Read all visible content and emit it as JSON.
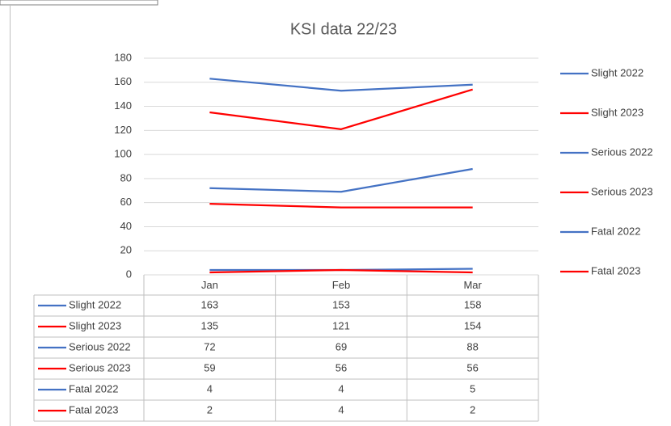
{
  "chart_data": {
    "type": "line",
    "title": "KSI data 22/23",
    "categories": [
      "Jan",
      "Feb",
      "Mar"
    ],
    "series": [
      {
        "name": "Slight 2022",
        "color": "#4472c4",
        "values": [
          163,
          153,
          158
        ]
      },
      {
        "name": "Slight 2023",
        "color": "#ff0000",
        "values": [
          135,
          121,
          154
        ]
      },
      {
        "name": "Serious 2022",
        "color": "#4472c4",
        "values": [
          72,
          69,
          88
        ]
      },
      {
        "name": "Serious 2023",
        "color": "#ff0000",
        "values": [
          59,
          56,
          56
        ]
      },
      {
        "name": "Fatal 2022",
        "color": "#4472c4",
        "values": [
          4,
          4,
          5
        ]
      },
      {
        "name": "Fatal 2023",
        "color": "#ff0000",
        "values": [
          2,
          4,
          2
        ]
      }
    ],
    "ylim": [
      0,
      180
    ],
    "yticks": [
      0,
      20,
      40,
      60,
      80,
      100,
      120,
      140,
      160,
      180
    ],
    "grid": true,
    "legend": "right",
    "data_table": true
  }
}
